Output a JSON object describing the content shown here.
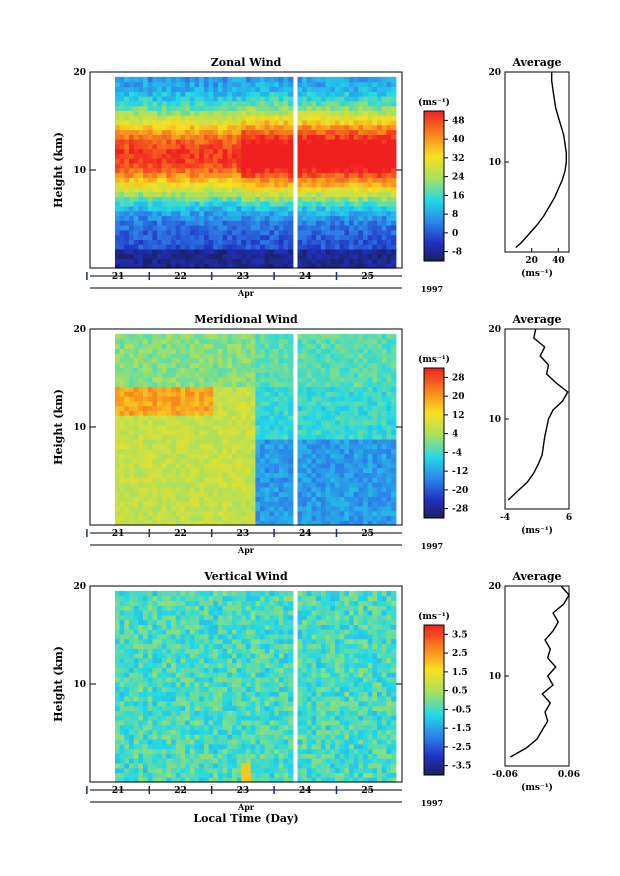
{
  "figure": {
    "xlabel": "Local Time (Day)",
    "month": "Apr",
    "year": "1997",
    "unit": "(ms⁻¹)",
    "height_label": "Height (km)",
    "avg_title": "Average"
  },
  "chart_data": [
    {
      "type": "heatmap",
      "title": "Zonal Wind",
      "ylabel": "Height (km)",
      "xlabel": "Apr",
      "x_ticks": [
        "21",
        "22",
        "23",
        "24",
        "25"
      ],
      "y_ticks": [
        "10",
        "20"
      ],
      "ylim": [
        0,
        20
      ],
      "colorbar_ticks": [
        "48",
        "40",
        "32",
        "24",
        "16",
        "8",
        "0",
        "-8"
      ],
      "colorbar_unit": "(ms⁻¹)",
      "colorbar_range": [
        -12,
        52
      ],
      "data_gap": [
        23.8,
        23.9
      ],
      "profile": {
        "title": "Average",
        "xlabel": "(ms⁻¹)",
        "x_ticks": [
          "20",
          "40"
        ],
        "xlim": [
          0,
          48
        ],
        "heights": [
          0.5,
          1,
          2,
          3,
          4,
          5,
          6,
          7,
          8,
          9,
          10,
          11,
          12,
          13,
          14,
          15,
          16,
          17,
          18,
          19,
          20
        ],
        "values": [
          8,
          12,
          18,
          24,
          29,
          33,
          37,
          40,
          43,
          45,
          46,
          46,
          45,
          44,
          42,
          40,
          38,
          37,
          36,
          35,
          35
        ]
      }
    },
    {
      "type": "heatmap",
      "title": "Meridional Wind",
      "ylabel": "Height (km)",
      "xlabel": "Apr",
      "x_ticks": [
        "21",
        "22",
        "23",
        "24",
        "25"
      ],
      "y_ticks": [
        "10",
        "20"
      ],
      "ylim": [
        0,
        20
      ],
      "colorbar_ticks": [
        "28",
        "20",
        "12",
        "4",
        "-4",
        "-12",
        "-20",
        "-28"
      ],
      "colorbar_unit": "(ms⁻¹)",
      "colorbar_range": [
        -32,
        32
      ],
      "data_gap": [
        23.8,
        23.9
      ],
      "profile": {
        "title": "Average",
        "xlabel": "(ms⁻¹)",
        "x_ticks": [
          "-4",
          "6"
        ],
        "xlim": [
          -4,
          6
        ],
        "heights": [
          1,
          2,
          3,
          4,
          5,
          6,
          7,
          8,
          9,
          10,
          11,
          12,
          13,
          14,
          15,
          16,
          17,
          18,
          19,
          20
        ],
        "values": [
          -3.5,
          -2,
          -0.5,
          0.5,
          1.2,
          1.8,
          2,
          2.2,
          2.5,
          2.8,
          3.5,
          5,
          5.8,
          4,
          2.5,
          2.8,
          1.5,
          2.2,
          0.5,
          0.8
        ]
      }
    },
    {
      "type": "heatmap",
      "title": "Vertical Wind",
      "ylabel": "Height (km)",
      "xlabel": "Apr",
      "x_ticks": [
        "21",
        "22",
        "23",
        "24",
        "25"
      ],
      "y_ticks": [
        "10",
        "20"
      ],
      "ylim": [
        0,
        20
      ],
      "colorbar_ticks": [
        "3.5",
        "2.5",
        "1.5",
        "0.5",
        "-0.5",
        "-1.5",
        "-2.5",
        "-3.5"
      ],
      "colorbar_unit": "(ms⁻¹)",
      "colorbar_range": [
        -4,
        4
      ],
      "data_gap": [
        23.8,
        23.9
      ],
      "profile": {
        "title": "Average",
        "xlabel": "(ms⁻¹)",
        "x_ticks": [
          "-0.06",
          "0.06"
        ],
        "xlim": [
          -0.06,
          0.06
        ],
        "heights": [
          1,
          2,
          3,
          4,
          5,
          6,
          7,
          8,
          9,
          10,
          11,
          12,
          13,
          14,
          15,
          16,
          17,
          18,
          19,
          20
        ],
        "values": [
          -0.05,
          -0.02,
          0.0,
          0.01,
          0.02,
          0.015,
          0.025,
          0.01,
          0.03,
          0.02,
          0.035,
          0.02,
          0.025,
          0.015,
          0.03,
          0.04,
          0.03,
          0.05,
          0.06,
          0.045
        ]
      }
    }
  ]
}
